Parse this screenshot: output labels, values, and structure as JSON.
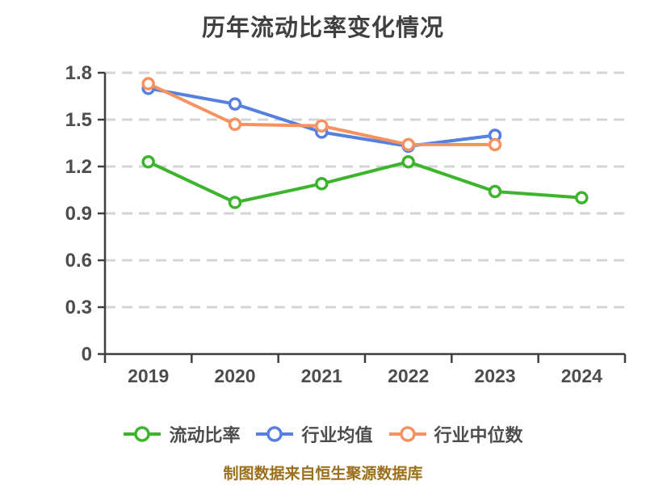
{
  "title": "历年流动比率变化情况",
  "caption": "制图数据来自恒生聚源数据库",
  "chart_data": {
    "type": "line",
    "title": "历年流动比率变化情况",
    "xlabel": "",
    "ylabel": "",
    "categories": [
      "2019",
      "2020",
      "2021",
      "2022",
      "2023",
      "2024"
    ],
    "series": [
      {
        "key": "current-ratio",
        "name": "流动比率",
        "color": "#3CB42C",
        "values": [
          1.23,
          0.97,
          1.09,
          1.23,
          1.04,
          1.0
        ]
      },
      {
        "key": "industry-mean",
        "name": "行业均值",
        "color": "#5680E0",
        "values": [
          1.7,
          1.6,
          1.42,
          1.33,
          1.4,
          null
        ]
      },
      {
        "key": "industry-median",
        "name": "行业中位数",
        "color": "#F6925F",
        "values": [
          1.73,
          1.47,
          1.46,
          1.34,
          1.34,
          null
        ]
      }
    ],
    "ylim": [
      0,
      1.8
    ],
    "yticks": {
      "values": [
        0,
        0.3,
        0.6,
        0.9,
        1.2,
        1.5,
        1.8
      ],
      "labels": [
        "0",
        "0.3",
        "0.6",
        "0.9",
        "1.2",
        "1.5",
        "1.8"
      ]
    },
    "grid": "dashed-horizontal",
    "legend_position": "bottom-center",
    "marker": "hollow-circle",
    "source_caption": "制图数据来自恒生聚源数据库",
    "colors": {
      "background": "#FFFFFF",
      "title_text": "#404040",
      "axis_line": "#3F3F3F",
      "tick_label": "#4D4D4D",
      "grid_line": "#D4D4D4",
      "legend_text": "#4D4D4D",
      "caption_text": "#9B6F1B",
      "marker_fill": "#FFFFFF"
    }
  }
}
